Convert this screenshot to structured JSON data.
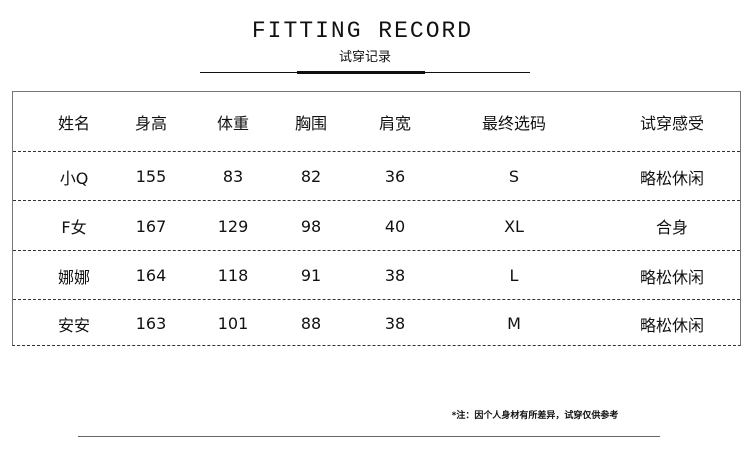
{
  "header": {
    "title": "FITTING RECORD",
    "subtitle": "试穿记录"
  },
  "table": {
    "columns": [
      "姓名",
      "身高",
      "体重",
      "胸围",
      "肩宽",
      "最终选码",
      "试穿感受"
    ],
    "rows": [
      [
        "小Q",
        "155",
        "83",
        "82",
        "36",
        "S",
        "略松休闲"
      ],
      [
        "F女",
        "167",
        "129",
        "98",
        "40",
        "XL",
        "合身"
      ],
      [
        "娜娜",
        "164",
        "118",
        "91",
        "38",
        "L",
        "略松休闲"
      ],
      [
        "安安",
        "163",
        "101",
        "88",
        "38",
        "M",
        "略松休闲"
      ]
    ]
  },
  "footer": {
    "note": "*注：因个人身材有所差异，试穿仅供参考"
  }
}
